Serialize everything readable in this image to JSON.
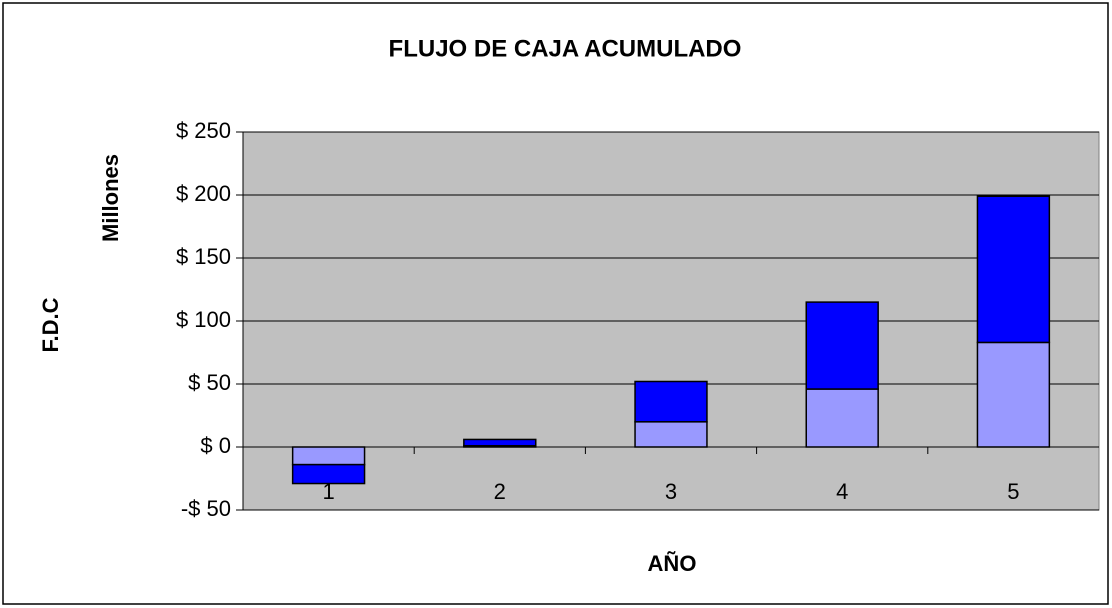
{
  "chart_data": {
    "type": "bar",
    "stacked": true,
    "title": "FLUJO DE CAJA ACUMULADO",
    "y_label": "F.D.C",
    "y_unit_label": "Millones",
    "x_label": "AÑO",
    "categories": [
      "1",
      "2",
      "3",
      "4",
      "5"
    ],
    "series": [
      {
        "color": "#9999ff",
        "values": [
          -14,
          1,
          20,
          46,
          83
        ]
      },
      {
        "color": "#0000ff",
        "values": [
          -15,
          5,
          32,
          69,
          116
        ]
      }
    ],
    "ylim": [
      -50,
      250
    ],
    "yticks": [
      {
        "value": -50,
        "label": "-$ 50"
      },
      {
        "value": 0,
        "label": "$ 0"
      },
      {
        "value": 50,
        "label": "$ 50"
      },
      {
        "value": 100,
        "label": "$ 100"
      },
      {
        "value": 150,
        "label": "$ 150"
      },
      {
        "value": 200,
        "label": "$ 200"
      },
      {
        "value": 250,
        "label": "$ 250"
      }
    ],
    "grid": true,
    "plot_background": "#c0c0c0"
  }
}
